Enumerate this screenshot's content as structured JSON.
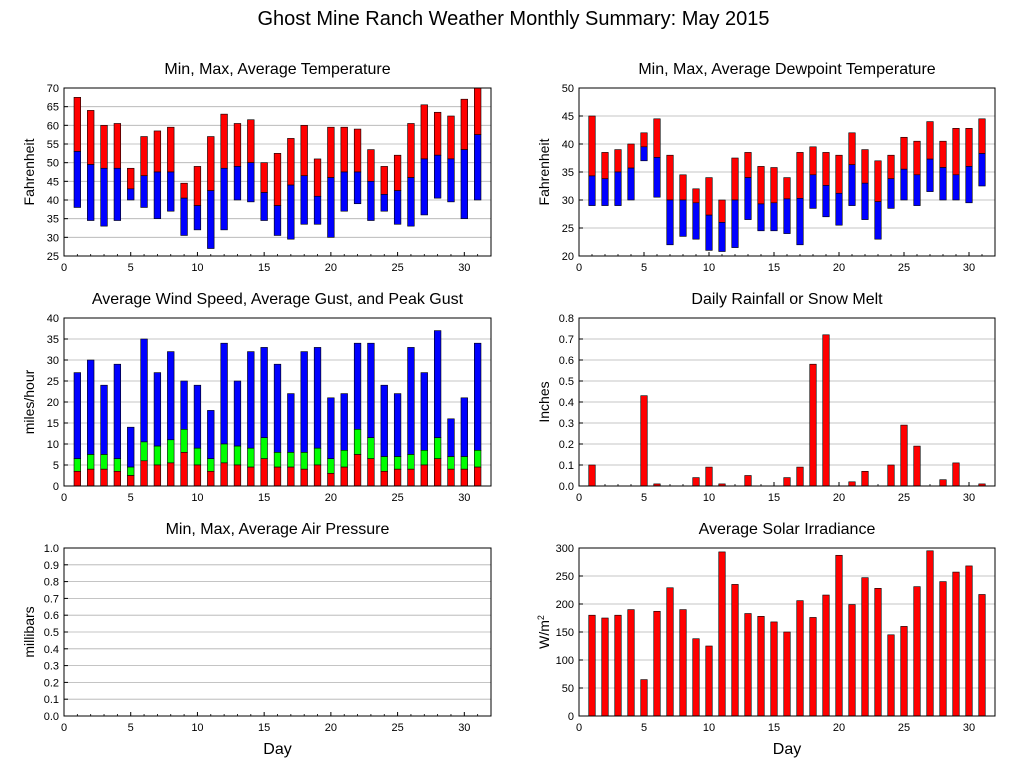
{
  "page": {
    "title": "Ghost Mine Ranch Weather Monthly Summary: May 2015"
  },
  "colors": {
    "red": "#ff0000",
    "blue": "#0000ff",
    "green": "#00ff00",
    "grid": "#b0b0b0"
  },
  "chart_data": [
    {
      "id": "temp",
      "type": "bar",
      "title": "Min, Max, Average Temperature",
      "xlabel": "",
      "ylabel": "Fahrenheit",
      "xlim": [
        0,
        32
      ],
      "xticks": [
        0,
        5,
        10,
        15,
        20,
        25,
        30
      ],
      "ylim": [
        25,
        70
      ],
      "yticks": [
        25,
        30,
        35,
        40,
        45,
        50,
        55,
        60,
        65,
        70
      ],
      "x": [
        1,
        2,
        3,
        4,
        5,
        6,
        7,
        8,
        9,
        10,
        11,
        12,
        13,
        14,
        15,
        16,
        17,
        18,
        19,
        20,
        21,
        22,
        23,
        24,
        25,
        26,
        27,
        28,
        29,
        30,
        31
      ],
      "series": [
        {
          "name": "Min",
          "values": [
            38,
            34.5,
            33,
            34.5,
            40,
            38,
            35,
            37,
            30.5,
            32,
            27,
            32,
            40,
            39.5,
            34.5,
            30.5,
            29.5,
            33.5,
            33.5,
            30,
            37,
            39,
            34.5,
            37,
            33.5,
            33,
            36,
            40.5,
            39.5,
            35,
            40
          ]
        },
        {
          "name": "Average",
          "values": [
            53,
            49.5,
            48.5,
            48.5,
            43,
            46.5,
            47.5,
            47.5,
            40.5,
            38.5,
            42.5,
            48.5,
            49,
            50,
            42,
            38.5,
            44,
            46.5,
            41,
            46,
            47.5,
            47.5,
            45,
            41.5,
            42.5,
            46,
            51,
            52,
            51,
            53.5,
            57.5
          ]
        },
        {
          "name": "Max",
          "values": [
            67.5,
            64,
            60,
            60.5,
            48.5,
            57,
            58.5,
            59.5,
            44.5,
            49,
            57,
            63,
            60.5,
            61.5,
            50,
            52.5,
            56.5,
            60,
            51,
            59.5,
            59.5,
            59,
            53.5,
            49,
            52,
            60.5,
            65.5,
            63.5,
            62.5,
            67,
            70
          ]
        }
      ]
    },
    {
      "id": "dew",
      "type": "bar",
      "title": "Min, Max, Average Dewpoint Temperature",
      "xlabel": "",
      "ylabel": "Fahrenheit",
      "xlim": [
        0,
        32
      ],
      "xticks": [
        0,
        5,
        10,
        15,
        20,
        25,
        30
      ],
      "ylim": [
        20,
        50
      ],
      "yticks": [
        20,
        25,
        30,
        35,
        40,
        45,
        50
      ],
      "x": [
        1,
        2,
        3,
        4,
        5,
        6,
        7,
        8,
        9,
        10,
        11,
        12,
        13,
        14,
        15,
        16,
        17,
        18,
        19,
        20,
        21,
        22,
        23,
        24,
        25,
        26,
        27,
        28,
        29,
        30,
        31
      ],
      "series": [
        {
          "name": "Min",
          "values": [
            29,
            29,
            29,
            30,
            37,
            30.5,
            22,
            23.5,
            23,
            21,
            20.8,
            21.5,
            26.5,
            24.5,
            24.5,
            24,
            22,
            28.5,
            27,
            25.5,
            29,
            26.5,
            23,
            28.5,
            30,
            29,
            31.5,
            30,
            30,
            29.5,
            32.5
          ]
        },
        {
          "name": "Average",
          "values": [
            34.3,
            33.8,
            35,
            35.7,
            39.5,
            37.6,
            30,
            30,
            29.5,
            27.3,
            26,
            30,
            34,
            29.3,
            29.5,
            30.2,
            30.3,
            34.5,
            32.6,
            31.2,
            36.3,
            33,
            29.7,
            33.8,
            35.5,
            34.5,
            37.3,
            35.8,
            34.5,
            36,
            38.3
          ]
        },
        {
          "name": "Max",
          "values": [
            45,
            38.5,
            39,
            40,
            42,
            44.5,
            38,
            34.5,
            32,
            34,
            30,
            37.5,
            38.5,
            36,
            35.8,
            34,
            38.5,
            39.5,
            38.5,
            38,
            42,
            39,
            37,
            38,
            41.2,
            40.5,
            44,
            40.5,
            42.8,
            42.8,
            44.5
          ]
        }
      ]
    },
    {
      "id": "wind",
      "type": "bar",
      "title": "Average Wind Speed, Average Gust, and Peak Gust",
      "xlabel": "",
      "ylabel": "miles/hour",
      "xlim": [
        0,
        32
      ],
      "xticks": [
        0,
        5,
        10,
        15,
        20,
        25,
        30
      ],
      "ylim": [
        0,
        40
      ],
      "yticks": [
        0,
        5,
        10,
        15,
        20,
        25,
        30,
        35,
        40
      ],
      "x": [
        1,
        2,
        3,
        4,
        5,
        6,
        7,
        8,
        9,
        10,
        11,
        12,
        13,
        14,
        15,
        16,
        17,
        18,
        19,
        20,
        21,
        22,
        23,
        24,
        25,
        26,
        27,
        28,
        29,
        30,
        31
      ],
      "series": [
        {
          "name": "Average Wind Speed",
          "values": [
            3.5,
            4,
            4,
            3.5,
            2.5,
            6,
            5,
            5.5,
            8,
            5,
            3.5,
            5.5,
            5,
            4.5,
            6.5,
            4.5,
            4.5,
            4,
            5,
            3,
            4.5,
            7.5,
            6.5,
            3.5,
            4,
            4,
            5,
            6.5,
            4,
            4,
            4.5
          ]
        },
        {
          "name": "Average Gust",
          "values": [
            6.5,
            7.5,
            7.5,
            6.5,
            4.5,
            10.5,
            9.5,
            11,
            13.5,
            9,
            6.5,
            10,
            9.5,
            9,
            11.5,
            8,
            8,
            8,
            9,
            6.5,
            8.5,
            13.5,
            11.5,
            7,
            7,
            7.5,
            8.5,
            11.5,
            7,
            7,
            8.5
          ]
        },
        {
          "name": "Peak Gust",
          "values": [
            27,
            30,
            24,
            29,
            14,
            35,
            27,
            32,
            25,
            24,
            18,
            34,
            25,
            32,
            33,
            29,
            22,
            32,
            33,
            21,
            22,
            34,
            34,
            24,
            22,
            33,
            27,
            37,
            16,
            21,
            34
          ]
        }
      ]
    },
    {
      "id": "rain",
      "type": "bar",
      "title": "Daily Rainfall or Snow Melt",
      "xlabel": "",
      "ylabel": "Inches",
      "xlim": [
        0,
        32
      ],
      "xticks": [
        0,
        5,
        10,
        15,
        20,
        25,
        30
      ],
      "ylim": [
        0,
        0.8
      ],
      "yticks": [
        "0.0",
        "0.1",
        "0.2",
        "0.3",
        "0.4",
        "0.5",
        "0.6",
        "0.7",
        "0.8"
      ],
      "x": [
        1,
        2,
        3,
        4,
        5,
        6,
        7,
        8,
        9,
        10,
        11,
        12,
        13,
        14,
        15,
        16,
        17,
        18,
        19,
        20,
        21,
        22,
        23,
        24,
        25,
        26,
        27,
        28,
        29,
        30,
        31
      ],
      "values": [
        0.1,
        0,
        0,
        0,
        0.43,
        0.01,
        0,
        0,
        0.04,
        0.09,
        0.01,
        0,
        0.05,
        0,
        0,
        0.04,
        0.09,
        0.58,
        0.72,
        0,
        0.02,
        0.07,
        0,
        0.1,
        0.29,
        0.19,
        0,
        0.03,
        0.11,
        0,
        0.01
      ]
    },
    {
      "id": "pressure",
      "type": "bar",
      "title": "Min, Max, Average Air Pressure",
      "xlabel": "Day",
      "ylabel": "millibars",
      "xlim": [
        0,
        32
      ],
      "xticks": [
        0,
        5,
        10,
        15,
        20,
        25,
        30
      ],
      "ylim": [
        0,
        1
      ],
      "yticks": [
        "0.0",
        "0.1",
        "0.2",
        "0.3",
        "0.4",
        "0.5",
        "0.6",
        "0.7",
        "0.8",
        "0.9",
        "1.0"
      ],
      "x": [],
      "values": []
    },
    {
      "id": "solar",
      "type": "bar",
      "title": "Average Solar Irradiance",
      "xlabel": "Day",
      "ylabel": "W/m",
      "ylabel_sup": "2",
      "xlim": [
        0,
        32
      ],
      "xticks": [
        0,
        5,
        10,
        15,
        20,
        25,
        30
      ],
      "ylim": [
        0,
        300
      ],
      "yticks": [
        0,
        50,
        100,
        150,
        200,
        250,
        300
      ],
      "x": [
        1,
        2,
        3,
        4,
        5,
        6,
        7,
        8,
        9,
        10,
        11,
        12,
        13,
        14,
        15,
        16,
        17,
        18,
        19,
        20,
        21,
        22,
        23,
        24,
        25,
        26,
        27,
        28,
        29,
        30,
        31
      ],
      "values": [
        180,
        175,
        180,
        190,
        65,
        187,
        229,
        190,
        138,
        125,
        293,
        235,
        183,
        178,
        168,
        150,
        206,
        176,
        216,
        287,
        199,
        247,
        228,
        145,
        160,
        231,
        295,
        240,
        257,
        268,
        217
      ]
    }
  ]
}
